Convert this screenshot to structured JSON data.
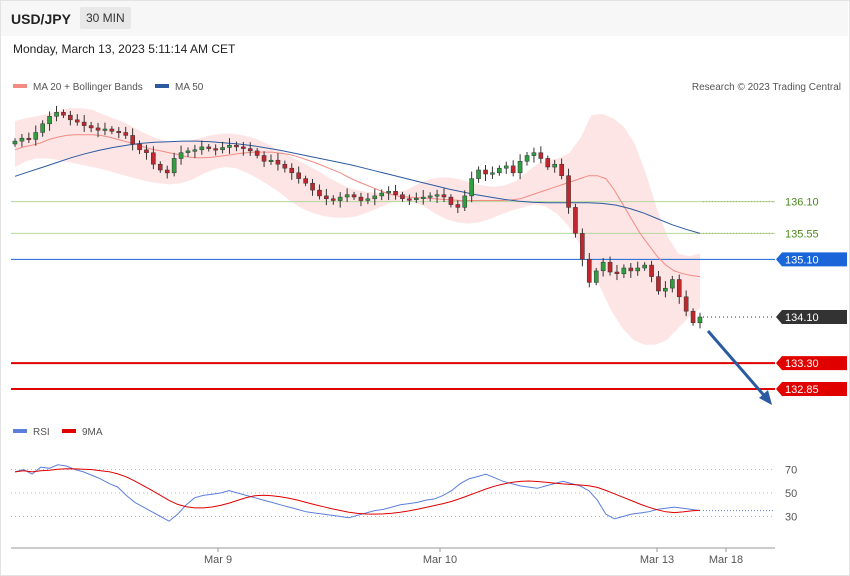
{
  "header": {
    "symbol": "USD/JPY",
    "timeframe": "30 MIN",
    "datetime": "Monday, March 13, 2023 5:11:14 AM CET"
  },
  "legend": {
    "ma20_label": "MA 20 + Bollinger Bands",
    "ma50_label": "MA 50",
    "ma20_color": "#f28b82",
    "ma50_color": "#2c5aa0",
    "credit": "Research © 2023 Trading Central"
  },
  "rsi_legend": {
    "rsi_label": "RSI",
    "ma9_label": "9MA",
    "rsi_color": "#5b7fdb",
    "ma9_color": "#e00000"
  },
  "chart_data": [
    {
      "type": "candlestick",
      "xlabels": [
        "Mar 9",
        "Mar 10",
        "Mar 13",
        "Mar 18"
      ],
      "ylim": [
        132.4,
        137.95
      ],
      "levels": [
        {
          "value": 136.1,
          "label": "136.10",
          "style": "resistance-light",
          "color": "#b5d79a",
          "text_color": "#4c8a1e"
        },
        {
          "value": 135.55,
          "label": "135.55",
          "style": "resistance-light",
          "color": "#b5d79a",
          "text_color": "#4c8a1e"
        },
        {
          "value": 135.1,
          "label": "135.10",
          "style": "pivot",
          "color": "#1a66d9"
        },
        {
          "value": 134.1,
          "label": "134.10",
          "style": "last-price",
          "color": "#333333"
        },
        {
          "value": 133.3,
          "label": "133.30",
          "style": "target",
          "color": "#e00000"
        },
        {
          "value": 132.85,
          "label": "132.85",
          "style": "target",
          "color": "#e00000"
        }
      ],
      "close": [
        137.15,
        137.2,
        137.18,
        137.3,
        137.45,
        137.58,
        137.65,
        137.6,
        137.52,
        137.48,
        137.42,
        137.38,
        137.34,
        137.36,
        137.32,
        137.3,
        137.25,
        137.1,
        137.0,
        136.95,
        136.75,
        136.65,
        136.6,
        136.85,
        136.95,
        136.98,
        137.0,
        137.05,
        137.02,
        137.0,
        137.04,
        137.08,
        137.05,
        137.02,
        136.98,
        136.9,
        136.8,
        136.82,
        136.75,
        136.68,
        136.6,
        136.5,
        136.42,
        136.3,
        136.2,
        136.15,
        136.12,
        136.18,
        136.22,
        136.18,
        136.12,
        136.15,
        136.2,
        136.25,
        136.28,
        136.22,
        136.15,
        136.14,
        136.16,
        136.18,
        136.2,
        136.22,
        136.18,
        136.05,
        136.0,
        136.2,
        136.5,
        136.65,
        136.58,
        136.6,
        136.68,
        136.72,
        136.6,
        136.8,
        136.9,
        136.95,
        136.85,
        136.7,
        136.75,
        136.55,
        136.0,
        135.55,
        135.1,
        134.7,
        134.9,
        135.05,
        134.88,
        134.85,
        134.95,
        134.9,
        134.95,
        135.0,
        134.8,
        134.55,
        134.6,
        134.75,
        134.45,
        134.2,
        134.0,
        134.1
      ],
      "ma20": [
        137.0,
        137.05,
        137.08,
        137.12,
        137.18,
        137.22,
        137.25,
        137.26,
        137.26,
        137.26,
        137.25,
        137.22,
        137.18,
        137.14,
        137.1,
        137.05,
        137.01,
        136.98,
        136.95,
        136.92,
        136.88,
        136.86,
        136.86,
        136.87,
        136.89,
        136.91,
        136.93,
        136.95,
        136.96,
        136.96,
        136.96,
        136.94,
        136.92,
        136.88,
        136.83,
        136.78,
        136.72,
        136.66,
        136.6,
        136.52,
        136.45,
        136.39,
        136.33,
        136.27,
        136.22,
        136.19,
        136.18,
        136.17,
        136.16,
        136.15,
        136.14,
        136.13,
        136.12,
        136.12,
        136.12,
        136.12,
        136.12,
        136.12,
        136.13,
        136.15,
        136.2,
        136.25,
        136.3,
        136.35,
        136.4,
        136.45,
        136.5,
        136.55,
        136.55,
        136.5,
        136.3,
        136.05,
        135.8,
        135.55,
        135.35,
        135.15,
        135.0,
        134.9,
        134.85,
        134.82,
        134.8
      ],
      "ma50": [
        136.54,
        136.62,
        136.7,
        136.78,
        136.86,
        136.93,
        136.99,
        137.04,
        137.08,
        137.11,
        137.13,
        137.14,
        137.15,
        137.15,
        137.14,
        137.12,
        137.1,
        137.07,
        137.03,
        136.99,
        136.94,
        136.89,
        136.84,
        136.79,
        136.74,
        136.68,
        136.62,
        136.56,
        136.5,
        136.44,
        136.38,
        136.32,
        136.27,
        136.22,
        136.18,
        136.14,
        136.11,
        136.09,
        136.08,
        136.08,
        136.08,
        136.08,
        136.07,
        136.04,
        135.98,
        135.9,
        135.8,
        135.7,
        135.62,
        135.55
      ],
      "bb_upper": [
        137.5,
        137.55,
        137.58,
        137.62,
        137.68,
        137.72,
        137.72,
        137.7,
        137.62,
        137.55,
        137.48,
        137.38,
        137.28,
        137.2,
        137.15,
        137.14,
        137.16,
        137.2,
        137.25,
        137.28,
        137.28,
        137.25,
        137.2,
        137.12,
        137.02,
        136.92,
        136.82,
        136.72,
        136.62,
        136.5,
        136.4,
        136.32,
        136.28,
        136.26,
        136.24,
        136.26,
        136.3,
        136.4,
        136.48,
        136.52,
        136.52,
        136.48,
        136.42,
        136.38,
        136.36,
        136.38,
        136.45,
        136.6,
        136.75,
        136.82,
        136.85,
        136.95,
        137.2,
        137.6,
        137.62,
        137.55,
        137.4,
        137.1,
        136.6,
        136.0,
        135.5,
        135.2,
        135.15,
        135.2
      ],
      "bb_lower": [
        136.7,
        136.8,
        136.85,
        136.85,
        136.82,
        136.78,
        136.74,
        136.7,
        136.66,
        136.6,
        136.55,
        136.5,
        136.45,
        136.42,
        136.4,
        136.42,
        136.48,
        136.58,
        136.66,
        136.7,
        136.68,
        136.6,
        136.5,
        136.38,
        136.25,
        136.1,
        135.98,
        135.9,
        135.85,
        135.82,
        135.82,
        135.85,
        135.92,
        136.0,
        136.08,
        136.12,
        136.1,
        136.02,
        135.9,
        135.8,
        135.74,
        135.72,
        135.74,
        135.8,
        135.88,
        135.95,
        136.0,
        136.05,
        136.02,
        135.9,
        135.7,
        135.4,
        135.0,
        134.6,
        134.2,
        133.9,
        133.7,
        133.62,
        133.62,
        133.7,
        133.9,
        134.1,
        134.25
      ],
      "rsi_ylim": [
        10,
        90
      ],
      "rsi_levels": [
        70,
        50,
        30
      ],
      "rsi": [
        68,
        70,
        66,
        72,
        71,
        74,
        73,
        70,
        68,
        65,
        62,
        58,
        55,
        48,
        42,
        38,
        34,
        30,
        26,
        32,
        40,
        46,
        48,
        49,
        50,
        52,
        50,
        48,
        46,
        44,
        42,
        40,
        38,
        36,
        34,
        33,
        32,
        31,
        30,
        29,
        31,
        33,
        35,
        36,
        38,
        40,
        41,
        42,
        44,
        45,
        48,
        52,
        58,
        62,
        64,
        66,
        63,
        60,
        58,
        56,
        55,
        54,
        56,
        58,
        60,
        58,
        56,
        52,
        44,
        32,
        28,
        30,
        32,
        33,
        34,
        36,
        37,
        38,
        37,
        36,
        35
      ]
    }
  ],
  "xaxis": {
    "labels": [
      "Mar 9",
      "Mar 10",
      "Mar 13",
      "Mar 18"
    ]
  },
  "rsi_axis": {
    "labels": [
      "70",
      "50",
      "30"
    ]
  }
}
